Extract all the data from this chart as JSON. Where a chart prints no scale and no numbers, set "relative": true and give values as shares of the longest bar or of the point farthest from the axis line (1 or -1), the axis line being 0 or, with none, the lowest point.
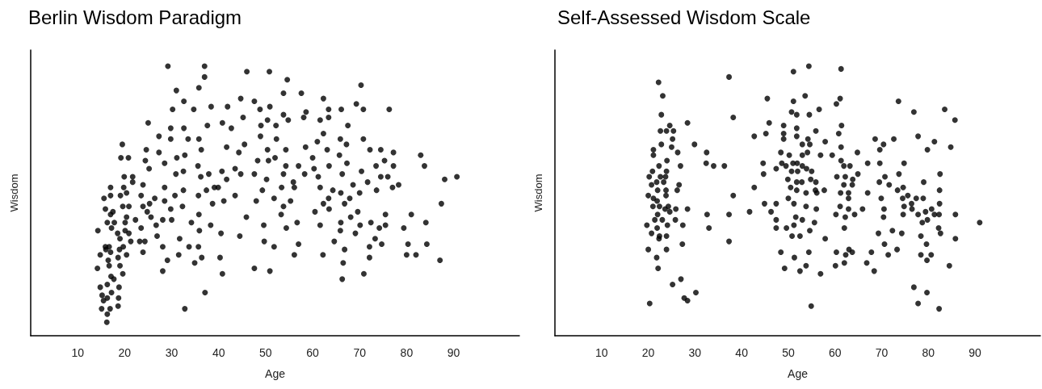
{
  "chart_data": [
    {
      "type": "scatter",
      "title": "Berlin Wisdom Paradigm",
      "xlabel": "Age",
      "ylabel": "Wisdom",
      "relative": true,
      "marker": "circle",
      "color": "#000000",
      "xlim": [
        0,
        104
      ],
      "xticks": [
        10,
        20,
        30,
        40,
        50,
        60,
        70,
        80,
        90
      ],
      "x": [
        29.2,
        37.0,
        37.0,
        31.0,
        35.8,
        32.6,
        30.2,
        34.7,
        38.4,
        41.9,
        46.0,
        44.7,
        47.6,
        48.8,
        45.2,
        25.0,
        37.6,
        40.8,
        42.7,
        49.0,
        29.8,
        32.6,
        27.3,
        29.8,
        33.5,
        35.8,
        48.9,
        19.5,
        19.2,
        20.8,
        24.6,
        27.3,
        36.3,
        41.7,
        45.5,
        44.3,
        24.4,
        28.5,
        31.1,
        32.8,
        25.2,
        35.6,
        48.3,
        19.9,
        21.7,
        30.9,
        32.5,
        37.9,
        36.2,
        40.7,
        43.5,
        44.7,
        47.6,
        41.7,
        17.0,
        19.8,
        21.7,
        23.9,
        28.5,
        32.5,
        20.4,
        19.1,
        15.6,
        17.0,
        23.5,
        26.4,
        30.7,
        35.7,
        37.4,
        39.1,
        39.9,
        43.5,
        49.3,
        15.9,
        19.6,
        20.9,
        23.9,
        25.3,
        28.5,
        32.3,
        41.1,
        38.7,
        48.0,
        17.5,
        17.0,
        24.8,
        29.8,
        35.8,
        20.4,
        25.6,
        16.3,
        17.8,
        20.1,
        22.3,
        26.7,
        28.1,
        30.0,
        34.2,
        14.3,
        17.2,
        18.5,
        20.1,
        20.9,
        23.5,
        35.9,
        38.3,
        45.9,
        49.6,
        19.0,
        21.3,
        23.2,
        24.3,
        26.9,
        31.7,
        40.5,
        44.5,
        49.7,
        15.9,
        16.7,
        16.0,
        14.8,
        17.0,
        18.9,
        19.7,
        20.4,
        23.9,
        28.1,
        33.7,
        35.7,
        16.5,
        18.6,
        16.7,
        19.0,
        29.1,
        31.5,
        34.9,
        36.4,
        40.3,
        14.2,
        17.1,
        19.6,
        28.1,
        40.8,
        47.6,
        17.7,
        14.8,
        16.3,
        18.8,
        17.2,
        15.2,
        16.3,
        18.7,
        15.5,
        15.1,
        16.9,
        18.6,
        37.1,
        32.8,
        16.3,
        16.2,
        50.8,
        54.6,
        53.8,
        57.6,
        62.3,
        70.3,
        50.9,
        63.4,
        66.1,
        69.3,
        70.8,
        76.3,
        50.4,
        52.2,
        53.8,
        54.8,
        58.6,
        58.1,
        61.6,
        63.4,
        67.5,
        62.3,
        52.3,
        61.0,
        65.9,
        67.2,
        70.8,
        50.4,
        54.3,
        58.5,
        63.1,
        52.0,
        50.6,
        60.0,
        65.7,
        72.2,
        74.5,
        77.2,
        83.0,
        54.3,
        57.0,
        60.3,
        63.5,
        67.3,
        73.5,
        75.3,
        77.2,
        83.8,
        53.8,
        58.3,
        61.2,
        66.3,
        70.4,
        74.5,
        76.0,
        50.2,
        55.9,
        56.1,
        53.4,
        61.6,
        64.3,
        68.6,
        71.7,
        77.0,
        78.3,
        73.6,
        88.1,
        90.7,
        51.8,
        55.3,
        53.8,
        63.4,
        66.0,
        67.9,
        70.0,
        62.3,
        66.8,
        53.3,
        60.5,
        63.5,
        69.6,
        75.5,
        81.0,
        87.4,
        54.4,
        56.7,
        61.6,
        66.0,
        68.1,
        70.1,
        65.9,
        69.1,
        72.4,
        74.2,
        75.5,
        79.4,
        84.1,
        51.8,
        57.0,
        64.6,
        66.8,
        73.3,
        74.7,
        72.1,
        80.3,
        84.3,
        56.1,
        62.2,
        72.1,
        80.0,
        82.0,
        87.1,
        50.9,
        66.5,
        66.3,
        70.9
      ],
      "values": [
        1.0,
        1.0,
        0.96,
        0.91,
        0.92,
        0.87,
        0.84,
        0.84,
        0.85,
        0.85,
        0.98,
        0.88,
        0.87,
        0.84,
        0.81,
        0.79,
        0.78,
        0.79,
        0.77,
        0.78,
        0.77,
        0.77,
        0.74,
        0.73,
        0.73,
        0.73,
        0.74,
        0.71,
        0.66,
        0.66,
        0.69,
        0.68,
        0.69,
        0.7,
        0.71,
        0.68,
        0.65,
        0.64,
        0.66,
        0.67,
        0.62,
        0.63,
        0.65,
        0.59,
        0.59,
        0.6,
        0.61,
        0.6,
        0.59,
        0.61,
        0.62,
        0.6,
        0.6,
        0.58,
        0.55,
        0.55,
        0.57,
        0.56,
        0.55,
        0.54,
        0.53,
        0.52,
        0.51,
        0.52,
        0.52,
        0.51,
        0.52,
        0.52,
        0.54,
        0.55,
        0.55,
        0.52,
        0.54,
        0.47,
        0.48,
        0.48,
        0.48,
        0.49,
        0.5,
        0.48,
        0.5,
        0.49,
        0.5,
        0.46,
        0.45,
        0.46,
        0.47,
        0.45,
        0.44,
        0.44,
        0.42,
        0.42,
        0.42,
        0.43,
        0.41,
        0.43,
        0.43,
        0.42,
        0.39,
        0.4,
        0.38,
        0.39,
        0.38,
        0.4,
        0.39,
        0.41,
        0.44,
        0.41,
        0.36,
        0.35,
        0.35,
        0.35,
        0.37,
        0.36,
        0.38,
        0.37,
        0.35,
        0.33,
        0.33,
        0.32,
        0.3,
        0.31,
        0.32,
        0.33,
        0.3,
        0.31,
        0.33,
        0.33,
        0.33,
        0.28,
        0.29,
        0.26,
        0.26,
        0.28,
        0.3,
        0.27,
        0.29,
        0.29,
        0.25,
        0.22,
        0.23,
        0.24,
        0.23,
        0.25,
        0.21,
        0.18,
        0.19,
        0.18,
        0.16,
        0.15,
        0.14,
        0.14,
        0.13,
        0.1,
        0.1,
        0.11,
        0.16,
        0.1,
        0.08,
        0.05,
        0.98,
        0.95,
        0.9,
        0.9,
        0.88,
        0.93,
        0.85,
        0.84,
        0.84,
        0.86,
        0.84,
        0.84,
        0.8,
        0.78,
        0.82,
        0.8,
        0.83,
        0.81,
        0.8,
        0.81,
        0.78,
        0.75,
        0.73,
        0.72,
        0.73,
        0.71,
        0.73,
        0.69,
        0.69,
        0.7,
        0.69,
        0.66,
        0.65,
        0.66,
        0.67,
        0.69,
        0.69,
        0.68,
        0.67,
        0.63,
        0.63,
        0.62,
        0.63,
        0.64,
        0.63,
        0.65,
        0.63,
        0.63,
        0.6,
        0.6,
        0.59,
        0.6,
        0.61,
        0.59,
        0.59,
        0.58,
        0.57,
        0.55,
        0.55,
        0.55,
        0.54,
        0.56,
        0.57,
        0.55,
        0.56,
        0.54,
        0.58,
        0.59,
        0.51,
        0.5,
        0.48,
        0.51,
        0.53,
        0.51,
        0.53,
        0.49,
        0.49,
        0.45,
        0.46,
        0.47,
        0.46,
        0.45,
        0.45,
        0.49,
        0.4,
        0.42,
        0.41,
        0.42,
        0.44,
        0.41,
        0.39,
        0.38,
        0.42,
        0.4,
        0.41,
        0.4,
        0.42,
        0.33,
        0.34,
        0.35,
        0.32,
        0.36,
        0.34,
        0.33,
        0.34,
        0.34,
        0.3,
        0.3,
        0.29,
        0.3,
        0.3,
        0.28,
        0.24,
        0.27,
        0.21,
        0.23
      ]
    },
    {
      "type": "scatter",
      "title": "Self-Assessed Wisdom Scale",
      "xlabel": "Age",
      "ylabel": "Wisdom",
      "relative": true,
      "marker": "circle",
      "color": "#000000",
      "xlim": [
        0,
        104
      ],
      "xticks": [
        10,
        20,
        30,
        40,
        50,
        60,
        70,
        80,
        90
      ],
      "x": [
        37.3,
        22.2,
        23.1,
        45.5,
        22.8,
        38.2,
        28.4,
        45.9,
        24.6,
        22.6,
        23.9,
        25.4,
        42.7,
        45.2,
        25.2,
        22.8,
        29.9,
        25.0,
        21.1,
        21.1,
        26.3,
        32.5,
        24.0,
        22.3,
        26.9,
        32.4,
        34.0,
        36.3,
        44.6,
        20.9,
        23.9,
        44.7,
        20.2,
        22.6,
        23.7,
        21.8,
        23.3,
        20.7,
        22.0,
        26.6,
        23.8,
        26.2,
        42.7,
        20.0,
        23.8,
        38.2,
        21.1,
        21.9,
        22.4,
        24.3,
        44.9,
        47.4,
        21.0,
        23.6,
        24.6,
        25.9,
        28.4,
        22.0,
        32.6,
        37.3,
        41.7,
        46.3,
        21.4,
        23.0,
        25.8,
        47.4,
        19.7,
        21.9,
        24.1,
        27.4,
        33.0,
        47.4,
        20.7,
        22.4,
        23.9,
        22.3,
        27.3,
        37.3,
        20.0,
        23.9,
        21.8,
        22.1,
        48.4,
        48.4,
        48.6,
        47.4,
        25.2,
        27.0,
        30.2,
        27.7,
        28.4,
        20.3,
        51.1,
        54.4,
        61.3,
        51.1,
        53.6,
        56.6,
        60.3,
        61.1,
        50.7,
        51.8,
        54.5,
        49.0,
        51.8,
        49.0,
        51.8,
        55.9,
        49.0,
        54.2,
        53.0,
        54.6,
        57.9,
        61.4,
        60.8,
        61.3,
        64.8,
        50.2,
        53.0,
        54.1,
        56.9,
        59.4,
        61.3,
        51.0,
        51.9,
        49.5,
        53.0,
        53.9,
        55.0,
        61.9,
        63.2,
        64.9,
        50.7,
        52.0,
        60.4,
        62.2,
        49.9,
        51.8,
        52.9,
        54.8,
        55.9,
        63.8,
        61.9,
        63.7,
        50.5,
        51.8,
        53.8,
        55.8,
        56.1,
        57.7,
        61.2,
        62.9,
        67.0,
        50.0,
        51.2,
        53.8,
        62.9,
        56.0,
        61.1,
        62.9,
        60.2,
        62.2,
        64.2,
        65.9,
        51.6,
        53.0,
        55.6,
        49.6,
        51.2,
        62.0,
        50.8,
        52.5,
        54.6,
        57.9,
        51.3,
        54.4,
        60.3,
        62.3,
        63.0,
        63.7,
        49.2,
        52.5,
        53.8,
        56.9,
        60.1,
        62.0,
        54.9,
        73.6,
        76.9,
        83.5,
        85.7,
        77.8,
        81.3,
        84.8,
        79.8,
        68.6,
        70.4,
        72.6,
        69.6,
        67.0,
        69.6,
        74.8,
        73.7,
        70.7,
        69.5,
        71.6,
        82.5,
        73.4,
        74.6,
        79.0,
        69.9,
        75.6,
        74.5,
        77.4,
        78.9,
        74.8,
        76.4,
        76.5,
        82.4,
        82.4,
        70.5,
        70.4,
        74.6,
        77.8,
        79.4,
        80.7,
        81.3,
        82.3,
        78.7,
        79.8,
        82.2,
        85.8,
        91.0,
        69.3,
        72.3,
        74.3,
        78.4,
        82.6,
        70.6,
        73.3,
        79.6,
        85.8,
        67.8,
        71.4,
        78.4,
        80.6,
        79.7,
        66.8,
        68.4,
        84.5,
        76.9,
        79.7,
        77.8,
        82.3
      ],
      "values": [
        0.96,
        0.94,
        0.89,
        0.88,
        0.82,
        0.81,
        0.79,
        0.79,
        0.78,
        0.76,
        0.76,
        0.76,
        0.74,
        0.75,
        0.73,
        0.71,
        0.71,
        0.7,
        0.69,
        0.67,
        0.68,
        0.68,
        0.65,
        0.63,
        0.63,
        0.64,
        0.63,
        0.63,
        0.64,
        0.61,
        0.61,
        0.6,
        0.59,
        0.59,
        0.59,
        0.57,
        0.57,
        0.56,
        0.54,
        0.56,
        0.54,
        0.54,
        0.55,
        0.52,
        0.52,
        0.52,
        0.51,
        0.5,
        0.48,
        0.48,
        0.49,
        0.49,
        0.48,
        0.47,
        0.46,
        0.47,
        0.47,
        0.45,
        0.45,
        0.45,
        0.46,
        0.46,
        0.43,
        0.43,
        0.43,
        0.43,
        0.41,
        0.4,
        0.41,
        0.41,
        0.4,
        0.4,
        0.38,
        0.37,
        0.37,
        0.36,
        0.34,
        0.35,
        0.32,
        0.32,
        0.29,
        0.25,
        0.31,
        0.68,
        0.64,
        0.62,
        0.19,
        0.21,
        0.16,
        0.14,
        0.13,
        0.12,
        0.98,
        1.0,
        0.99,
        0.87,
        0.89,
        0.84,
        0.86,
        0.88,
        0.83,
        0.82,
        0.82,
        0.78,
        0.77,
        0.75,
        0.74,
        0.76,
        0.73,
        0.73,
        0.71,
        0.71,
        0.72,
        0.78,
        0.75,
        0.7,
        0.68,
        0.67,
        0.67,
        0.68,
        0.67,
        0.67,
        0.65,
        0.64,
        0.64,
        0.63,
        0.63,
        0.62,
        0.61,
        0.63,
        0.63,
        0.6,
        0.61,
        0.61,
        0.59,
        0.59,
        0.58,
        0.57,
        0.57,
        0.58,
        0.57,
        0.58,
        0.56,
        0.56,
        0.55,
        0.54,
        0.53,
        0.54,
        0.53,
        0.54,
        0.53,
        0.53,
        0.53,
        0.51,
        0.49,
        0.48,
        0.51,
        0.47,
        0.48,
        0.47,
        0.45,
        0.44,
        0.45,
        0.47,
        0.44,
        0.43,
        0.42,
        0.4,
        0.41,
        0.4,
        0.37,
        0.37,
        0.39,
        0.36,
        0.29,
        0.31,
        0.31,
        0.3,
        0.32,
        0.31,
        0.25,
        0.24,
        0.26,
        0.23,
        0.26,
        0.27,
        0.11,
        0.87,
        0.83,
        0.84,
        0.8,
        0.74,
        0.72,
        0.7,
        0.69,
        0.73,
        0.71,
        0.73,
        0.69,
        0.64,
        0.64,
        0.64,
        0.6,
        0.59,
        0.57,
        0.56,
        0.6,
        0.54,
        0.55,
        0.57,
        0.51,
        0.52,
        0.51,
        0.51,
        0.51,
        0.48,
        0.49,
        0.47,
        0.54,
        0.49,
        0.47,
        0.44,
        0.45,
        0.45,
        0.46,
        0.47,
        0.45,
        0.45,
        0.42,
        0.43,
        0.4,
        0.45,
        0.42,
        0.38,
        0.39,
        0.38,
        0.37,
        0.38,
        0.34,
        0.32,
        0.34,
        0.36,
        0.31,
        0.3,
        0.3,
        0.3,
        0.28,
        0.27,
        0.24,
        0.26,
        0.18,
        0.16,
        0.12,
        0.1
      ]
    }
  ]
}
